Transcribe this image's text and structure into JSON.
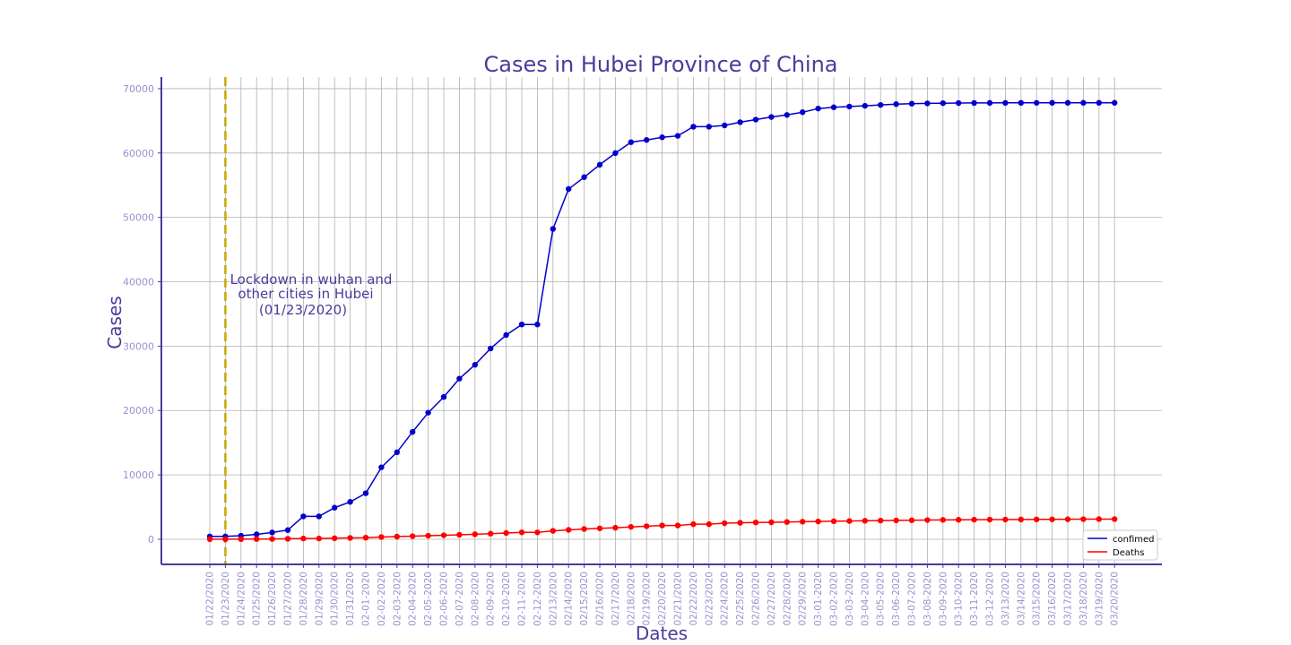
{
  "chart_data": {
    "type": "line",
    "title": "Cases in Hubei Province of China",
    "xlabel": "Dates",
    "ylabel": "Cases",
    "ylim": [
      -3900,
      71800
    ],
    "yticks": [
      0,
      10000,
      20000,
      30000,
      40000,
      50000,
      60000,
      70000
    ],
    "grid": true,
    "legend_position": "bottom-right",
    "categories": [
      "01/22/2020",
      "01/23/2020",
      "01/24/2020",
      "01/25/2020",
      "01/26/2020",
      "01/27/2020",
      "01/28/2020",
      "01/29/2020",
      "01/30/2020",
      "01/31/2020",
      "02-01-2020",
      "02-02-2020",
      "02-03-2020",
      "02-04-2020",
      "02-05-2020",
      "02-06-2020",
      "02-07-2020",
      "02-08-2020",
      "02-09-2020",
      "02-10-2020",
      "02-11-2020",
      "02-12-2020",
      "02/13/2020",
      "02/14/2020",
      "02/15/2020",
      "02/16/2020",
      "02/17/2020",
      "02/18/2020",
      "02/19/2020",
      "02/20/2020",
      "02/21/2020",
      "02/22/2020",
      "02/23/2020",
      "02/24/2020",
      "02/25/2020",
      "02/26/2020",
      "02/27/2020",
      "02/28/2020",
      "02/29/2020",
      "03-01-2020",
      "03-02-2020",
      "03-03-2020",
      "03-04-2020",
      "03-05-2020",
      "03-06-2020",
      "03-07-2020",
      "03-08-2020",
      "03-09-2020",
      "03-10-2020",
      "03-11-2020",
      "03-12-2020",
      "03/13/2020",
      "03/14/2020",
      "03/15/2020",
      "03/16/2020",
      "03/17/2020",
      "03/18/2020",
      "03/19/2020",
      "03/20/2020"
    ],
    "series": [
      {
        "name": "confimed",
        "color": "#0000cc",
        "values": [
          444,
          444,
          549,
          761,
          1058,
          1423,
          3554,
          3554,
          4903,
          5806,
          7153,
          11177,
          13522,
          16678,
          19665,
          22112,
          24953,
          27100,
          29631,
          31728,
          33366,
          33366,
          48206,
          54406,
          56249,
          58182,
          59989,
          61682,
          62031,
          62442,
          62662,
          64084,
          64084,
          64287,
          64786,
          65187,
          65596,
          65914,
          66337,
          66907,
          67103,
          67217,
          67332,
          67466,
          67592,
          67666,
          67707,
          67743,
          67760,
          67773,
          67781,
          67786,
          67790,
          67794,
          67798,
          67799,
          67800,
          67800,
          67800
        ]
      },
      {
        "name": "Deaths",
        "color": "#ff0000",
        "values": [
          17,
          17,
          24,
          40,
          52,
          76,
          125,
          125,
          162,
          204,
          249,
          350,
          414,
          479,
          549,
          618,
          699,
          780,
          871,
          974,
          1068,
          1068,
          1310,
          1457,
          1596,
          1696,
          1789,
          1921,
          2029,
          2144,
          2144,
          2346,
          2346,
          2495,
          2563,
          2615,
          2641,
          2682,
          2727,
          2761,
          2803,
          2835,
          2871,
          2902,
          2931,
          2959,
          2986,
          3008,
          3024,
          3046,
          3056,
          3062,
          3075,
          3085,
          3099,
          3111,
          3122,
          3130,
          3133
        ]
      }
    ],
    "lockdown_marker": {
      "category": "01/23/2020",
      "color": "#c8a800",
      "annotation_lines": [
        "Lockdown in wuhan and",
        "other cities in Hubei",
        "(01/23/2020)"
      ]
    },
    "axis_color": "#483d9b",
    "grid_color": "#b0b0b0"
  }
}
